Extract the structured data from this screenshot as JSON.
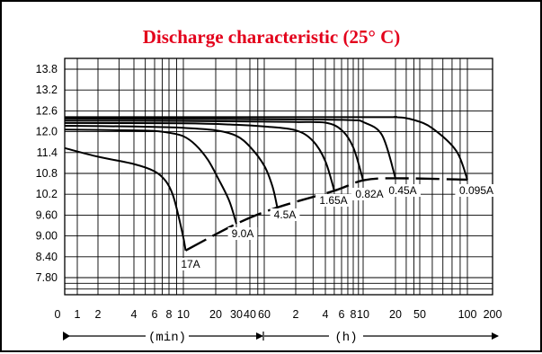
{
  "chart_data": {
    "type": "line",
    "title": "Discharge characteristic (25° C)",
    "title_color": "#e3001b",
    "line_color": "#000000",
    "grid": true,
    "legend": "none",
    "y_ticks": [
      "13.8",
      "13.2",
      "12.6",
      "12.0",
      "11.4",
      "10.8",
      "10.2",
      "9.60",
      "9.00",
      "8.40",
      "7.80"
    ],
    "ylim": [
      7.2,
      14.1
    ],
    "x_ticks": [
      "0",
      "1",
      "2",
      "4",
      "6",
      "8",
      "10",
      "20",
      "30",
      "40",
      "60",
      "2",
      "4",
      "6",
      "8",
      "10",
      "20",
      "50",
      "100",
      "200"
    ],
    "x_axis_segments": [
      "(min)",
      "(h)"
    ],
    "series": [
      {
        "name": "17A",
        "points": [
          [
            0.0,
            11.53
          ],
          [
            2.0,
            11.28
          ],
          [
            4.0,
            11.07
          ],
          [
            6.0,
            10.86
          ],
          [
            7.5,
            10.58
          ],
          [
            8.5,
            10.18
          ],
          [
            9.3,
            9.55
          ],
          [
            10.0,
            8.95
          ],
          [
            10.5,
            8.58
          ]
        ]
      },
      {
        "name": "9.0A",
        "points": [
          [
            0.0,
            12.06
          ],
          [
            4.0,
            12.04
          ],
          [
            6.0,
            12.02
          ],
          [
            8.0,
            11.97
          ],
          [
            10.0,
            11.87
          ],
          [
            13.0,
            11.62
          ],
          [
            17.0,
            11.18
          ],
          [
            21.0,
            10.65
          ],
          [
            26.0,
            10.02
          ],
          [
            30.0,
            9.35
          ]
        ]
      },
      {
        "name": "4.5A",
        "points": [
          [
            0.0,
            12.17
          ],
          [
            4.0,
            12.15
          ],
          [
            8.0,
            12.13
          ],
          [
            10.0,
            12.11
          ],
          [
            20.0,
            12.04
          ],
          [
            30.0,
            11.88
          ],
          [
            40.0,
            11.57
          ],
          [
            60.0,
            11.02
          ],
          [
            72.0,
            10.42
          ],
          [
            80.0,
            9.82
          ]
        ]
      },
      {
        "name": "1.65A",
        "points": [
          [
            0.0,
            12.25
          ],
          [
            10.0,
            12.24
          ],
          [
            30.0,
            12.2
          ],
          [
            60.0,
            12.15
          ],
          [
            120.0,
            12.04
          ],
          [
            180.0,
            11.73
          ],
          [
            240.0,
            11.15
          ],
          [
            300.0,
            10.3
          ]
        ]
      },
      {
        "name": "0.82A",
        "points": [
          [
            0.0,
            12.32
          ],
          [
            10.0,
            12.31
          ],
          [
            60.0,
            12.29
          ],
          [
            120.0,
            12.28
          ],
          [
            240.0,
            12.26
          ],
          [
            360.0,
            12.05
          ],
          [
            480.0,
            11.55
          ],
          [
            600.0,
            10.6
          ]
        ]
      },
      {
        "name": "0.45A",
        "points": [
          [
            0.0,
            12.38
          ],
          [
            60.0,
            12.36
          ],
          [
            240.0,
            12.35
          ],
          [
            480.0,
            12.33
          ],
          [
            600.0,
            12.28
          ],
          [
            900.0,
            11.9
          ],
          [
            1200.0,
            10.66
          ]
        ]
      },
      {
        "name": "0.095A",
        "points": [
          [
            0.0,
            12.42
          ],
          [
            600.0,
            12.42
          ],
          [
            1200.0,
            12.42
          ],
          [
            2400.0,
            12.34
          ],
          [
            3600.0,
            12.1
          ],
          [
            5100.0,
            11.45
          ],
          [
            6000.0,
            10.62
          ]
        ]
      }
    ],
    "end_voltage_curve": [
      [
        10.5,
        8.58
      ],
      [
        30.0,
        9.35
      ],
      [
        80.0,
        9.82
      ],
      [
        300.0,
        10.3
      ],
      [
        600.0,
        10.6
      ],
      [
        1200.0,
        10.66
      ],
      [
        6000.0,
        10.62
      ]
    ]
  }
}
